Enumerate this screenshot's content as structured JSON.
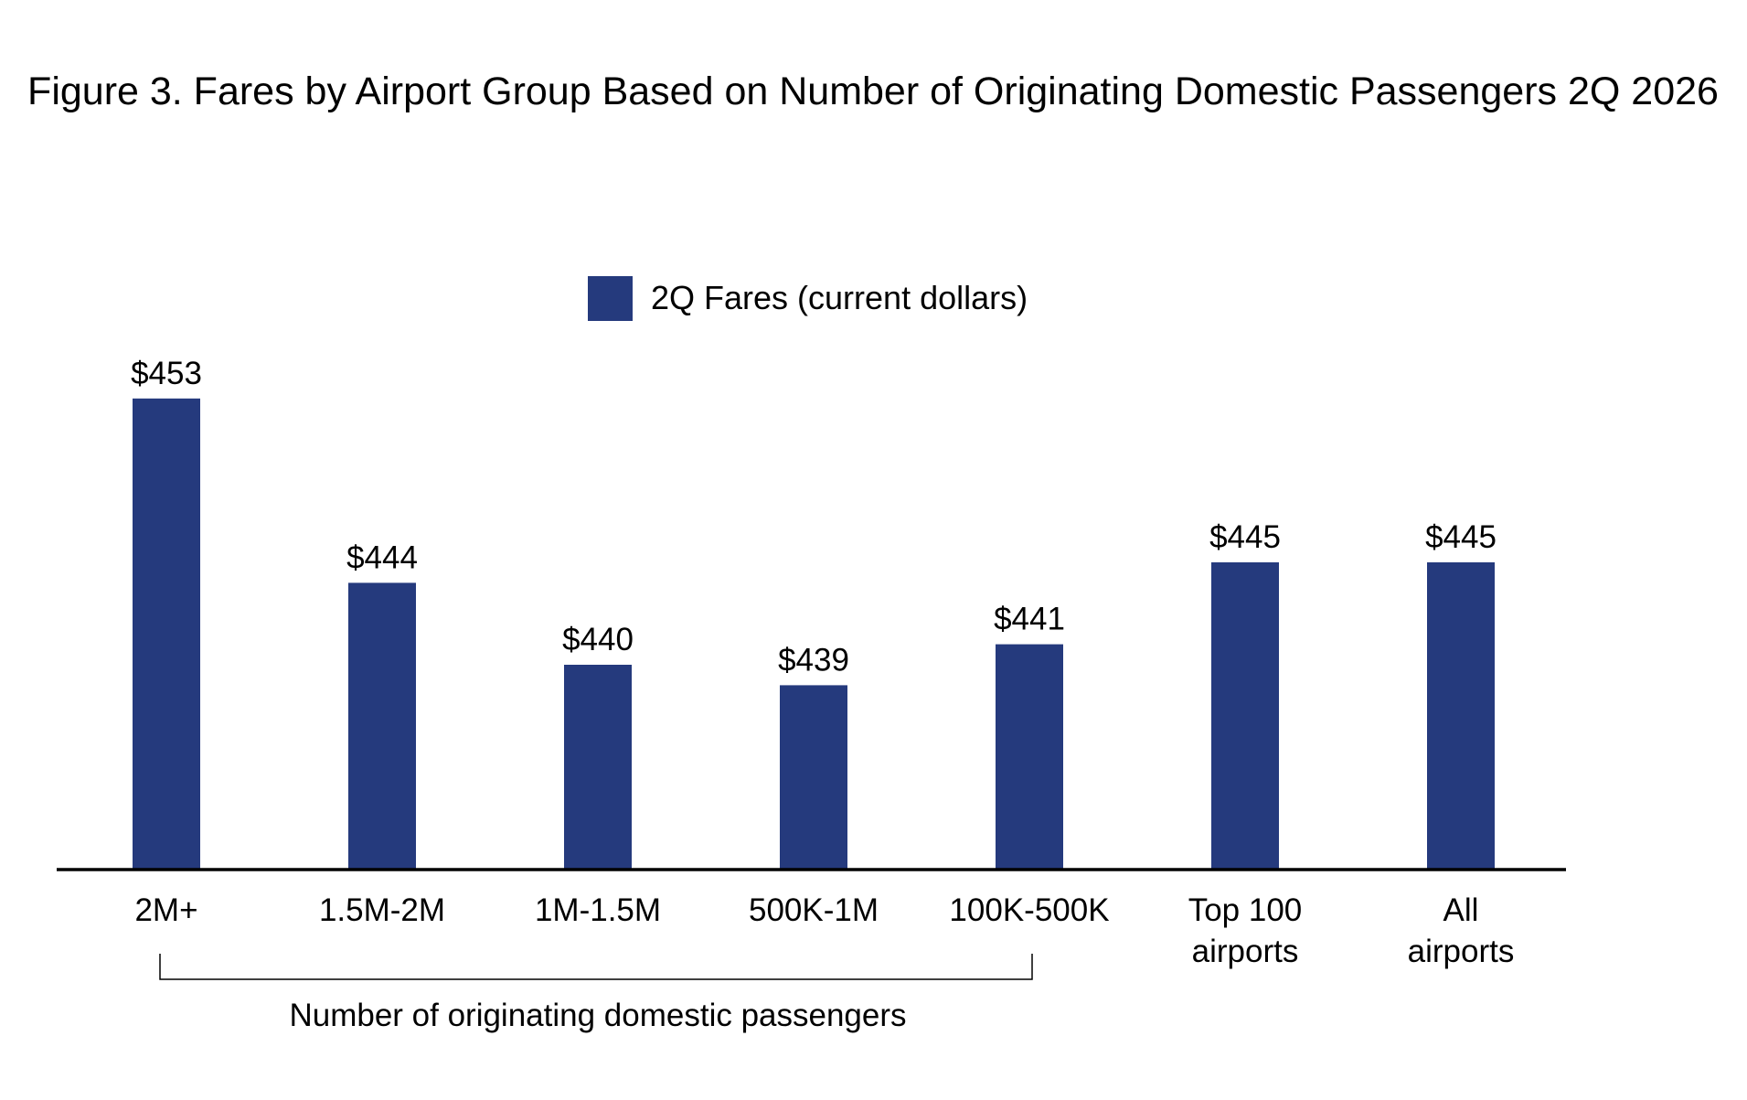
{
  "chart_data": {
    "type": "bar",
    "title": "Figure 3. Fares by Airport Group Based on Number of Originating Domestic Passengers 2Q 2026",
    "categories": [
      [
        "2M+"
      ],
      [
        "1.5M-2M"
      ],
      [
        "1M-1.5M"
      ],
      [
        "500K-1M"
      ],
      [
        "100K-500K"
      ],
      [
        "Top 100",
        "airports"
      ],
      [
        "All",
        "airports"
      ]
    ],
    "series": [
      {
        "name": "2Q Fares (current dollars)",
        "values": [
          453,
          444,
          440,
          439,
          441,
          445,
          445
        ],
        "value_labels": [
          "$453",
          "$444",
          "$440",
          "$439",
          "$441",
          "$445",
          "$445"
        ]
      }
    ],
    "group_bracket": {
      "label": "Number of originating domestic passengers",
      "from_category": 0,
      "to_category": 4
    },
    "ylim": [
      430,
      455
    ],
    "grid": false,
    "y_axis_visible": false,
    "legend_position": "top-center",
    "colors": {
      "bar": "#253a7d",
      "axis": "#000000",
      "text": "#000000"
    }
  }
}
